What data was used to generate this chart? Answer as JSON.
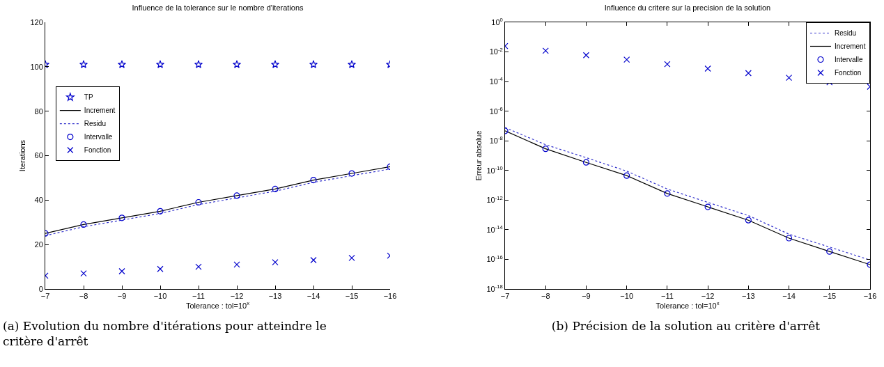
{
  "chart_data": [
    {
      "type": "line",
      "title": "Influence de la tolerance sur le nombre d'iterations",
      "xlabel": "Tolerance : tol=10$^{x}$",
      "ylabel": "Iterations",
      "x": [
        -7,
        -8,
        -9,
        -10,
        -11,
        -12,
        -13,
        -14,
        -15,
        -16
      ],
      "xlim": [
        -7,
        -16
      ],
      "xticks": [
        -7,
        -8,
        -9,
        -10,
        -11,
        -12,
        -13,
        -14,
        -15,
        -16
      ],
      "ylim": [
        0,
        120
      ],
      "yticks": [
        0,
        20,
        40,
        60,
        80,
        100,
        120
      ],
      "grid": false,
      "legend": "left",
      "series": [
        {
          "name": "TP",
          "type": "scatter",
          "marker": "star",
          "color": "#0000cc",
          "values": [
            101,
            101,
            101,
            101,
            101,
            101,
            101,
            101,
            101,
            101
          ]
        },
        {
          "name": "Increment",
          "type": "line",
          "marker": "none",
          "line_style": "solid",
          "color": "#000000",
          "values": [
            25,
            29,
            32,
            35,
            39,
            42,
            45,
            49,
            52,
            55
          ]
        },
        {
          "name": "Residu",
          "type": "line",
          "marker": "none",
          "line_style": "dotted",
          "color": "#3333cc",
          "values": [
            24,
            28,
            31,
            34,
            38,
            41,
            44,
            48,
            51,
            54
          ]
        },
        {
          "name": "Intervalle",
          "type": "scatter",
          "marker": "circle",
          "color": "#0000cc",
          "values": [
            25,
            29,
            32,
            35,
            39,
            42,
            45,
            49,
            52,
            55
          ]
        },
        {
          "name": "Fonction",
          "type": "scatter",
          "marker": "cross",
          "color": "#0000cc",
          "values": [
            6,
            7,
            8,
            9,
            10,
            11,
            12,
            13,
            14,
            15
          ]
        }
      ],
      "annotations": [
        "(a) Evolution du nombre d'itérations pour atteindre le critère d'arrêt"
      ]
    },
    {
      "type": "line",
      "title": "Influence du critere sur la precision de la solution",
      "xlabel": "Tolerance : tol=10$^{x}$",
      "ylabel": "Erreur absolue",
      "log": "y",
      "x": [
        -7,
        -8,
        -9,
        -10,
        -11,
        -12,
        -13,
        -14,
        -15,
        -16
      ],
      "xlim": [
        -7,
        -16
      ],
      "xticks": [
        -7,
        -8,
        -9,
        -10,
        -11,
        -12,
        -13,
        -14,
        -15,
        -16
      ],
      "ylim": [
        1e-18,
        1
      ],
      "yticks": [
        {
          "value": 1e-18,
          "label": "10$^{-18}$"
        },
        {
          "value": 1e-16,
          "label": "10$^{-16}$"
        },
        {
          "value": 1e-14,
          "label": "10$^{-14}$"
        },
        {
          "value": 1e-12,
          "label": "10$^{-12}$"
        },
        {
          "value": 1e-10,
          "label": "10$^{-10}$"
        },
        {
          "value": 1e-08,
          "label": "10$^{-8}$"
        },
        {
          "value": 1e-06,
          "label": "10$^{-6}$"
        },
        {
          "value": 0.0001,
          "label": "10$^{-4}$"
        },
        {
          "value": 0.01,
          "label": "10$^{-2}$"
        },
        {
          "value": 1,
          "label": "10$^{0}$"
        }
      ],
      "grid": false,
      "legend": "top right",
      "series": [
        {
          "name": "Residu",
          "type": "line",
          "marker": "none",
          "line_style": "dotted",
          "color": "#3333cc",
          "values": [
            7.8e-08,
            5.5e-09,
            7.3e-10,
            9e-11,
            5.6e-12,
            7e-13,
            9e-14,
            5e-15,
            6.8e-16,
            9e-17
          ]
        },
        {
          "name": "Increment",
          "type": "line",
          "marker": "none",
          "line_style": "solid",
          "color": "#000000",
          "values": [
            4.7e-08,
            2.9e-09,
            3.5e-10,
            4.5e-11,
            2.8e-12,
            3.5e-13,
            4.4e-14,
            2.7e-15,
            3.4e-16,
            4.4e-17
          ]
        },
        {
          "name": "Intervalle",
          "type": "scatter",
          "marker": "circle",
          "color": "#0000cc",
          "values": [
            4.7e-08,
            2.9e-09,
            3.5e-10,
            4.5e-11,
            2.8e-12,
            3.5e-13,
            4.4e-14,
            2.7e-15,
            3.4e-16,
            4.4e-17
          ]
        },
        {
          "name": "Fonction",
          "type": "scatter",
          "marker": "cross",
          "color": "#0000cc",
          "values": [
            0.025,
            0.012,
            0.006,
            0.003,
            0.0015,
            0.00075,
            0.00037,
            0.00018,
            9e-05,
            4.5e-05
          ]
        }
      ],
      "annotations": [
        "(b) Précision de la solution au critère d'arrêt"
      ]
    }
  ]
}
